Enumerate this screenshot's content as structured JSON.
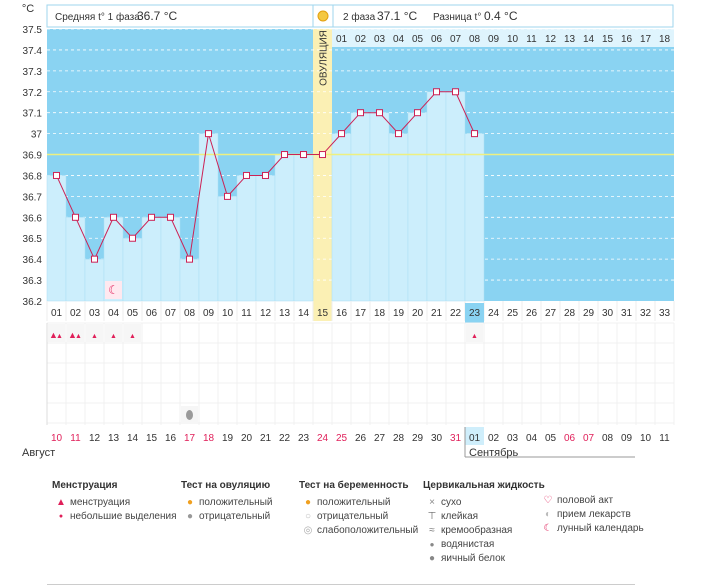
{
  "header": {
    "unit": "°C",
    "phase1": {
      "label": "Средняя t° 1 фаза",
      "value": "36.7 °C"
    },
    "phase2": {
      "label": "2 фаза",
      "value": "37.1 °C"
    },
    "diff": {
      "label": "Разница t°",
      "value": "0.4 °C"
    }
  },
  "ovulation_label": "ОВУЛЯЦИЯ",
  "months": {
    "first": "Август",
    "second": "Сентябрь"
  },
  "chart_data": {
    "type": "line",
    "title": "",
    "ylabel": "°C",
    "ylim": [
      36.2,
      37.5
    ],
    "y_ticks": [
      "37.5",
      "37.4",
      "37.3",
      "37.2",
      "37.1",
      "37",
      "36.9",
      "36.8",
      "36.7",
      "36.6",
      "36.5",
      "36.4",
      "36.3",
      "36.2"
    ],
    "cycle_days": [
      "01",
      "02",
      "03",
      "04",
      "05",
      "06",
      "07",
      "08",
      "09",
      "10",
      "11",
      "12",
      "13",
      "14",
      "15",
      "16",
      "17",
      "18",
      "19",
      "20",
      "21",
      "22",
      "23",
      "24",
      "25",
      "26",
      "27",
      "28",
      "29",
      "30",
      "31",
      "32",
      "33"
    ],
    "phase2_days": [
      "01",
      "02",
      "03",
      "04",
      "05",
      "06",
      "07",
      "08",
      "09",
      "10",
      "11",
      "12",
      "13",
      "14",
      "15",
      "16",
      "17",
      "18"
    ],
    "cover_line": 36.9,
    "ovulation_day": 15,
    "current_day": 23,
    "temperatures": [
      36.8,
      36.6,
      36.4,
      36.6,
      36.5,
      36.6,
      36.6,
      36.4,
      37.0,
      36.7,
      36.8,
      36.8,
      36.9,
      36.9,
      36.9,
      37.0,
      37.1,
      37.1,
      37.0,
      37.1,
      37.2,
      37.2,
      37.0
    ],
    "dates": [
      "10",
      "11",
      "12",
      "13",
      "14",
      "15",
      "16",
      "17",
      "18",
      "19",
      "20",
      "21",
      "22",
      "23",
      "24",
      "25",
      "26",
      "27",
      "28",
      "29",
      "30",
      "31",
      "01",
      "02",
      "03",
      "04",
      "05",
      "06",
      "07",
      "08",
      "09",
      "10",
      "11"
    ],
    "red_dates": [
      0,
      1,
      7,
      8,
      14,
      15,
      21,
      27,
      28
    ],
    "markers": {
      "moon_day": 4,
      "menstruation_heavy_days": [
        1,
        2,
        3
      ],
      "spotting_days": [
        3,
        4,
        5,
        23
      ],
      "egg_white_day": 8
    }
  },
  "legend": {
    "menstruation": {
      "title": "Менструация",
      "items": [
        "менструация",
        "небольшие выделения"
      ]
    },
    "ovulation_test": {
      "title": "Тест на овуляцию",
      "items": [
        "положительный",
        "отрицательный"
      ]
    },
    "pregnancy_test": {
      "title": "Тест на беременность",
      "items": [
        "положительный",
        "отрицательный",
        "слабоположительный"
      ]
    },
    "cervical": {
      "title": "Цервикальная жидкость",
      "items": [
        "сухо",
        "клейкая",
        "кремообразная",
        "водянистая",
        "яичный белок"
      ]
    },
    "other": {
      "items": [
        "половой акт",
        "прием лекарств",
        "лунный календарь"
      ]
    }
  },
  "colors": {
    "phase1": "#cceefc",
    "phase2_bg": "#8ad3f2",
    "line": "#cc2255",
    "ovulation": "#fbf0b4",
    "red": "#e0205a"
  }
}
